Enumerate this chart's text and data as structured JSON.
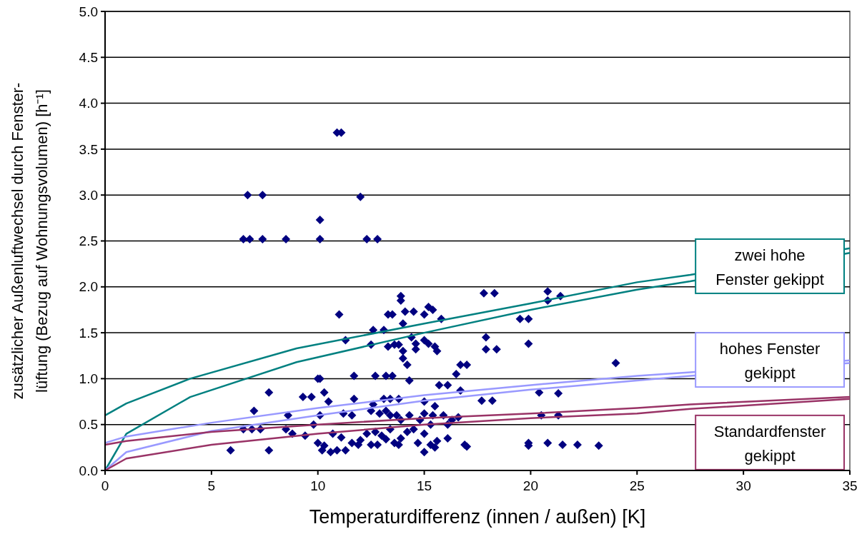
{
  "chart_data": {
    "type": "scatter",
    "xlabel": "Temperaturdifferenz (innen /  außen) [K]",
    "ylabel": "zusätzlicher Außenluftwechsel durch Fenster-\nlüftung (Bezug auf Wohnungsvolumen) [h⁻¹]",
    "xlim": [
      0,
      35
    ],
    "xticks": [
      0,
      5,
      10,
      15,
      20,
      25,
      30,
      35
    ],
    "ylim": [
      0,
      5
    ],
    "yticks": [
      {
        "value": 0,
        "label": "0.0"
      },
      {
        "value": 0.5,
        "label": "0.5"
      },
      {
        "value": 1,
        "label": "1.0"
      },
      {
        "value": 1.5,
        "label": "1.5"
      },
      {
        "value": 2,
        "label": "2.0"
      },
      {
        "value": 2.5,
        "label": "2.5"
      },
      {
        "value": 3,
        "label": "3.0"
      },
      {
        "value": 3.5,
        "label": "3.5"
      },
      {
        "value": 4,
        "label": "4.0"
      },
      {
        "value": 4.5,
        "label": "4.5"
      },
      {
        "value": 5,
        "label": "5.0"
      }
    ],
    "grid": "y",
    "legend": false,
    "series": [
      {
        "color": "#000080",
        "marker": "diamond",
        "x": [
          6.7,
          7.4,
          10.9,
          11.1,
          12.0,
          10.1,
          6.5,
          6.8,
          7.4,
          8.5,
          10.1,
          12.3,
          12.8,
          11.0,
          13.9,
          13.9,
          15.2,
          15.4,
          14.1,
          13.3,
          14.5,
          15.0,
          12.6,
          13.5,
          11.3,
          13.1,
          14.0,
          15.8,
          17.8,
          18.3,
          20.8,
          20.8,
          21.4,
          19.5,
          19.9,
          19.9,
          17.9,
          17.9,
          18.4,
          24.0,
          12.5,
          13.3,
          13.6,
          13.8,
          14.0,
          14.0,
          14.2,
          15.0,
          15.2,
          15.5,
          15.6,
          14.6,
          14.6,
          14.4,
          16.7,
          17.0,
          16.5,
          11.7,
          12.7,
          13.2,
          13.5,
          14.3,
          10.0,
          10.1,
          7.7,
          9.3,
          9.7,
          10.3,
          10.5,
          10.1,
          11.7,
          12.6,
          13.1,
          13.4,
          13.8,
          15.0,
          15.5,
          16.7,
          15.7,
          16.1,
          20.4,
          21.3,
          17.7,
          18.2,
          7.0,
          8.6,
          9.8,
          11.2,
          11.6,
          12.5,
          12.9,
          13.2,
          13.4,
          13.7,
          13.9,
          14.3,
          15.0,
          15.4,
          15.9,
          16.3,
          16.6,
          20.5,
          21.3,
          14.8,
          15.3,
          16.1,
          6.5,
          6.9,
          7.3,
          8.5,
          8.8,
          9.4,
          10.0,
          10.3,
          10.7,
          11.1,
          11.6,
          12.0,
          12.3,
          12.7,
          13.0,
          13.2,
          13.4,
          13.6,
          13.9,
          14.2,
          14.5,
          14.7,
          15.0,
          15.3,
          15.6,
          16.1,
          13.8,
          12.8,
          11.9,
          10.2,
          10.6,
          10.9,
          11.3,
          12.5,
          15.0,
          15.5,
          5.9,
          7.7,
          16.9,
          17.0,
          19.9,
          19.9,
          20.8,
          21.5,
          22.2,
          23.2
        ],
        "values": [
          3.0,
          3.0,
          3.68,
          3.68,
          2.98,
          2.73,
          2.52,
          2.52,
          2.52,
          2.52,
          2.52,
          2.52,
          2.52,
          1.7,
          1.9,
          1.85,
          1.78,
          1.75,
          1.73,
          1.7,
          1.73,
          1.7,
          1.53,
          1.7,
          1.42,
          1.53,
          1.6,
          1.65,
          1.93,
          1.93,
          1.95,
          1.85,
          1.9,
          1.65,
          1.65,
          1.38,
          1.45,
          1.32,
          1.32,
          1.17,
          1.37,
          1.35,
          1.37,
          1.37,
          1.3,
          1.22,
          1.15,
          1.42,
          1.38,
          1.35,
          1.3,
          1.38,
          1.32,
          1.45,
          1.15,
          1.15,
          1.05,
          1.03,
          1.03,
          1.03,
          1.03,
          0.98,
          1.0,
          1.0,
          0.85,
          0.8,
          0.8,
          0.85,
          0.75,
          0.6,
          0.78,
          0.72,
          0.78,
          0.78,
          0.78,
          0.75,
          0.7,
          0.87,
          0.93,
          0.93,
          0.85,
          0.84,
          0.76,
          0.76,
          0.65,
          0.6,
          0.5,
          0.62,
          0.6,
          0.65,
          0.62,
          0.65,
          0.6,
          0.6,
          0.55,
          0.6,
          0.62,
          0.6,
          0.6,
          0.55,
          0.58,
          0.6,
          0.6,
          0.55,
          0.5,
          0.5,
          0.45,
          0.45,
          0.45,
          0.45,
          0.4,
          0.38,
          0.3,
          0.27,
          0.4,
          0.36,
          0.3,
          0.33,
          0.4,
          0.42,
          0.38,
          0.34,
          0.45,
          0.3,
          0.35,
          0.42,
          0.45,
          0.3,
          0.4,
          0.28,
          0.32,
          0.35,
          0.28,
          0.28,
          0.28,
          0.22,
          0.2,
          0.22,
          0.22,
          0.28,
          0.2,
          0.25,
          0.22,
          0.22,
          0.28,
          0.26,
          0.3,
          0.27,
          0.3,
          0.28,
          0.28,
          0.27
        ]
      },
      {
        "type": "line",
        "name": "zwei hohe Fenster gekippt",
        "color": "#008080",
        "x": [
          0,
          1,
          4,
          9,
          15,
          20,
          25,
          27.5,
          35
        ],
        "values": [
          0.6,
          0.73,
          1.0,
          1.33,
          1.6,
          1.82,
          2.05,
          2.13,
          2.42
        ]
      },
      {
        "type": "line",
        "color": "#008080",
        "x": [
          0,
          1,
          4,
          9,
          15,
          20,
          25,
          27.5,
          35
        ],
        "values": [
          0,
          0.4,
          0.8,
          1.18,
          1.5,
          1.75,
          1.97,
          2.06,
          2.37
        ]
      },
      {
        "type": "line",
        "name": "hohes Fenster gekippt",
        "color": "#9999ff",
        "x": [
          0,
          1,
          5,
          10,
          15,
          20,
          25,
          27.5,
          35
        ],
        "values": [
          0.3,
          0.37,
          0.52,
          0.68,
          0.82,
          0.93,
          1.03,
          1.07,
          1.2
        ]
      },
      {
        "type": "line",
        "color": "#9999ff",
        "x": [
          0,
          1,
          5,
          10,
          15,
          20,
          25,
          27.5,
          35
        ],
        "values": [
          0,
          0.2,
          0.43,
          0.6,
          0.76,
          0.88,
          0.98,
          1.03,
          1.17
        ]
      },
      {
        "type": "line",
        "name": "Standardfenster gekippt",
        "color": "#993366",
        "x": [
          0,
          1,
          5,
          10,
          15,
          20,
          25,
          27.5,
          35
        ],
        "values": [
          0.28,
          0.32,
          0.42,
          0.5,
          0.57,
          0.62,
          0.68,
          0.72,
          0.8
        ]
      },
      {
        "type": "line",
        "color": "#993366",
        "x": [
          0,
          1,
          5,
          10,
          15,
          20,
          25,
          27.5,
          35
        ],
        "values": [
          0,
          0.13,
          0.28,
          0.4,
          0.5,
          0.57,
          0.62,
          0.67,
          0.78
        ]
      }
    ]
  }
}
